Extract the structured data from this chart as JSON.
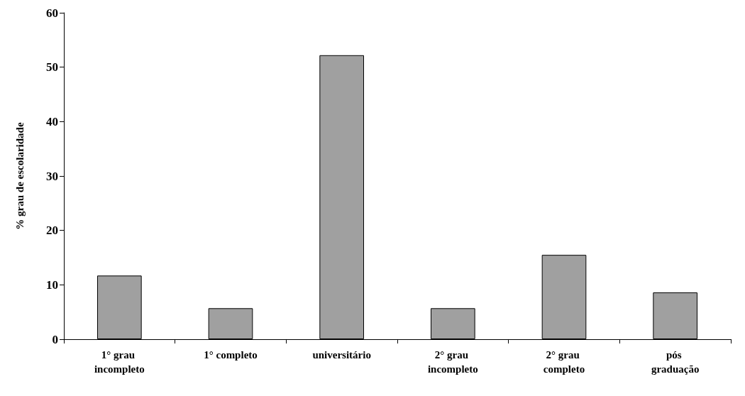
{
  "chart_data": {
    "type": "bar",
    "ylabel": "% grau de escolaridade",
    "categories": [
      "1° grau incompleto",
      "1° completo",
      "universitário",
      "2° grau incompleto",
      "2° grau completo",
      "pós graduação"
    ],
    "values": [
      11.7,
      5.7,
      52.2,
      5.7,
      15.5,
      8.6
    ],
    "color": "#a0a0a0",
    "ylim": [
      0,
      60
    ],
    "yticks": [
      0,
      10,
      20,
      30,
      40,
      50,
      60
    ],
    "grid": false
  }
}
